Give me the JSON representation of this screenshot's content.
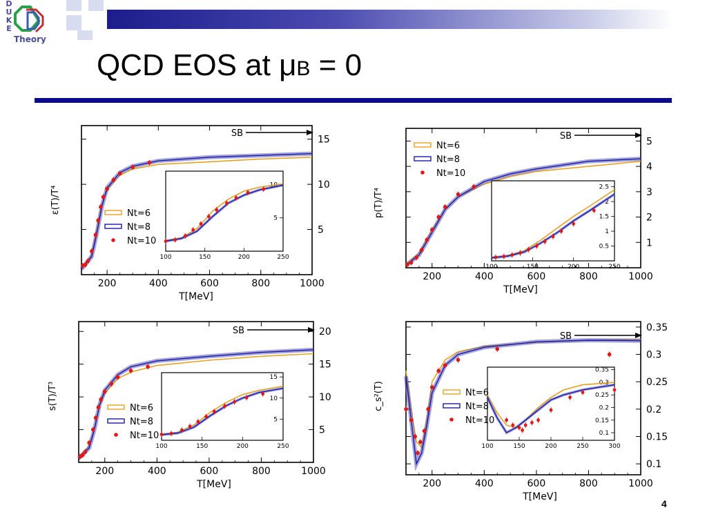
{
  "slide": {
    "title_main": "QCD EOS at μ",
    "title_sub": "B",
    "title_rest": " = 0",
    "page_number": "4",
    "logo_letters": [
      "D",
      "U",
      "K",
      "E"
    ],
    "logo_word": "Theory",
    "accent_color": "#0a0a8c"
  },
  "colors": {
    "nt6": "#e8a020",
    "nt8": "#1a1aa8",
    "nt10": "#e01818",
    "band": "#5a5ab8"
  },
  "chart_data": [
    {
      "type": "line",
      "ylabel": "ε(T)/T⁴",
      "xlabel": "T[MeV]",
      "sb_label": "SB",
      "xlim": [
        100,
        1000
      ],
      "ylim": [
        0,
        16.5
      ],
      "xticks": [
        "200",
        "400",
        "600",
        "800",
        "1000"
      ],
      "yticks": [
        "5",
        "10",
        "15"
      ],
      "series": [
        {
          "name": "Nt=6",
          "x": [
            100,
            140,
            160,
            180,
            200,
            250,
            300,
            400,
            600,
            800,
            1000
          ],
          "y": [
            0.8,
            2.2,
            5.0,
            7.8,
            9.4,
            11.0,
            11.7,
            12.2,
            12.5,
            12.8,
            13.0
          ]
        },
        {
          "name": "Nt=8",
          "x": [
            100,
            140,
            160,
            180,
            200,
            250,
            300,
            400,
            600,
            800,
            1000
          ],
          "y": [
            0.6,
            2.0,
            4.6,
            7.6,
            9.6,
            11.3,
            12.0,
            12.6,
            13.0,
            13.2,
            13.4
          ]
        },
        {
          "name": "Nt=10",
          "x": [
            105,
            115,
            125,
            140,
            155,
            165,
            175,
            185,
            200,
            225,
            250,
            300,
            365
          ],
          "y": [
            1.0,
            1.1,
            1.5,
            2.6,
            4.4,
            6.0,
            7.5,
            8.6,
            9.5,
            10.5,
            11.2,
            11.9,
            12.4
          ]
        }
      ],
      "inset": {
        "xlim": [
          100,
          250
        ],
        "ylim": [
          0,
          12
        ],
        "xticks": [
          "100",
          "150",
          "200",
          "250"
        ],
        "yticks": [
          "5",
          "10"
        ],
        "series": [
          {
            "name": "Nt=6",
            "x": [
              100,
              120,
              140,
              160,
              180,
              200,
              220,
              250
            ],
            "y": [
              1.6,
              2.0,
              3.4,
              6.0,
              7.8,
              9.0,
              9.6,
              10.1
            ]
          },
          {
            "name": "Nt=8",
            "x": [
              100,
              120,
              140,
              160,
              180,
              200,
              220,
              250
            ],
            "y": [
              1.5,
              1.9,
              3.0,
              5.2,
              7.2,
              8.4,
              9.2,
              9.9
            ]
          },
          {
            "name": "Nt=10",
            "x": [
              100,
              112,
              125,
              135,
              145,
              155,
              165,
              178,
              190,
              205,
              225
            ],
            "y": [
              1.5,
              1.7,
              2.3,
              3.2,
              4.1,
              5.2,
              6.2,
              7.2,
              8.0,
              8.8,
              9.3
            ]
          }
        ]
      }
    },
    {
      "type": "line",
      "ylabel": "p(T)/T⁴",
      "xlabel": "T[MeV]",
      "sb_label": "SB",
      "xlim": [
        100,
        1000
      ],
      "ylim": [
        0,
        5.5
      ],
      "xticks": [
        "200",
        "400",
        "600",
        "800",
        "1000"
      ],
      "yticks": [
        "1",
        "2",
        "3",
        "4",
        "5"
      ],
      "series": [
        {
          "name": "Nt=6",
          "x": [
            100,
            150,
            200,
            250,
            300,
            400,
            500,
            600,
            800,
            1000
          ],
          "y": [
            0.1,
            0.6,
            1.5,
            2.3,
            2.8,
            3.3,
            3.6,
            3.8,
            4.0,
            4.2
          ]
        },
        {
          "name": "Nt=8",
          "x": [
            100,
            150,
            200,
            250,
            300,
            400,
            500,
            600,
            800,
            1000
          ],
          "y": [
            0.1,
            0.5,
            1.4,
            2.3,
            2.8,
            3.4,
            3.7,
            3.9,
            4.2,
            4.3
          ]
        },
        {
          "name": "Nt=10",
          "x": [
            105,
            120,
            140,
            160,
            180,
            200,
            225,
            250,
            300,
            360
          ],
          "y": [
            0.12,
            0.2,
            0.4,
            0.7,
            1.1,
            1.5,
            2.0,
            2.4,
            2.9,
            3.2
          ]
        }
      ],
      "inset": {
        "xlim": [
          100,
          250
        ],
        "ylim": [
          0,
          2.7
        ],
        "xticks": [
          "100",
          "150",
          "200",
          "250"
        ],
        "yticks": [
          "0.5",
          "1",
          "1.5",
          "2",
          "2.5"
        ],
        "series": [
          {
            "name": "Nt=6",
            "x": [
              100,
              120,
              140,
              160,
              180,
              200,
              220,
              250
            ],
            "y": [
              0.12,
              0.18,
              0.35,
              0.7,
              1.1,
              1.5,
              1.85,
              2.4
            ]
          },
          {
            "name": "Nt=8",
            "x": [
              100,
              120,
              140,
              160,
              180,
              200,
              220,
              250
            ],
            "y": [
              0.1,
              0.16,
              0.3,
              0.6,
              0.95,
              1.35,
              1.7,
              2.25
            ]
          },
          {
            "name": "Nt=10",
            "x": [
              105,
              115,
              125,
              135,
              145,
              155,
              165,
              175,
              185,
              200,
              225
            ],
            "y": [
              0.12,
              0.15,
              0.2,
              0.27,
              0.38,
              0.5,
              0.65,
              0.82,
              1.0,
              1.25,
              1.7
            ]
          }
        ]
      }
    },
    {
      "type": "line",
      "ylabel": "s(T)/T³",
      "xlabel": "T[MeV]",
      "sb_label": "SB",
      "xlim": [
        100,
        1000
      ],
      "ylim": [
        0,
        21.5
      ],
      "xticks": [
        "200",
        "400",
        "600",
        "800",
        "1000"
      ],
      "yticks": [
        "5",
        "10",
        "15",
        "20"
      ],
      "series": [
        {
          "name": "Nt=6",
          "x": [
            100,
            140,
            160,
            180,
            200,
            250,
            300,
            400,
            600,
            800,
            1000
          ],
          "y": [
            0.8,
            2.5,
            5.2,
            8.6,
            10.5,
            12.8,
            13.8,
            14.8,
            15.6,
            16.2,
            16.6
          ]
        },
        {
          "name": "Nt=8",
          "x": [
            100,
            140,
            160,
            180,
            200,
            250,
            300,
            400,
            600,
            800,
            1000
          ],
          "y": [
            0.6,
            2.2,
            5.0,
            8.8,
            11.0,
            13.4,
            14.6,
            15.5,
            16.2,
            16.8,
            17.2
          ]
        },
        {
          "name": "Nt=10",
          "x": [
            105,
            115,
            125,
            140,
            155,
            165,
            175,
            185,
            200,
            225,
            250,
            300,
            365
          ],
          "y": [
            0.9,
            1.1,
            1.6,
            3.0,
            5.0,
            6.8,
            8.4,
            9.6,
            10.8,
            12.0,
            13.0,
            14.0,
            14.6
          ]
        }
      ],
      "inset": {
        "xlim": [
          100,
          250
        ],
        "ylim": [
          0,
          16
        ],
        "xticks": [
          "100",
          "150",
          "200",
          "250"
        ],
        "yticks": [
          "5",
          "10",
          "15"
        ],
        "series": [
          {
            "name": "Nt=6",
            "x": [
              100,
              120,
              140,
              160,
              180,
              200,
              220,
              250
            ],
            "y": [
              1.4,
              1.9,
              3.6,
              6.6,
              9.0,
              10.8,
              11.8,
              12.8
            ]
          },
          {
            "name": "Nt=8",
            "x": [
              100,
              120,
              140,
              160,
              180,
              200,
              220,
              250
            ],
            "y": [
              1.3,
              1.7,
              3.1,
              5.8,
              8.2,
              10.0,
              11.3,
              12.3
            ]
          },
          {
            "name": "Nt=10",
            "x": [
              100,
              112,
              125,
              135,
              145,
              155,
              165,
              178,
              190,
              205,
              225
            ],
            "y": [
              1.4,
              1.6,
              2.4,
              3.3,
              4.4,
              5.6,
              6.8,
              8.1,
              9.1,
              10.1,
              11.0
            ]
          }
        ]
      }
    },
    {
      "type": "line",
      "ylabel": "c_s²(T)",
      "xlabel": "T[MeV]",
      "sb_label": "SB",
      "xlim": [
        100,
        1000
      ],
      "ylim": [
        0.08,
        0.36
      ],
      "xticks": [
        "200",
        "400",
        "600",
        "800",
        "1000"
      ],
      "yticks": [
        "0.1",
        "0.15",
        "0.2",
        "0.25",
        "0.3",
        "0.35"
      ],
      "series": [
        {
          "name": "Nt=6",
          "x": [
            100,
            120,
            140,
            160,
            180,
            200,
            250,
            300,
            400,
            600,
            800,
            1000
          ],
          "y": [
            0.27,
            0.2,
            0.14,
            0.13,
            0.18,
            0.25,
            0.29,
            0.305,
            0.315,
            0.322,
            0.326,
            0.328
          ]
        },
        {
          "name": "Nt=8",
          "x": [
            100,
            120,
            140,
            160,
            180,
            200,
            250,
            300,
            400,
            600,
            800,
            1000
          ],
          "y": [
            0.26,
            0.18,
            0.1,
            0.12,
            0.17,
            0.23,
            0.28,
            0.3,
            0.313,
            0.323,
            0.326,
            0.325
          ]
        },
        {
          "name": "Nt=10",
          "x": [
            100,
            120,
            135,
            145,
            155,
            170,
            185,
            200,
            225,
            250,
            300,
            450,
            880
          ],
          "y": [
            0.2,
            0.18,
            0.15,
            0.12,
            0.14,
            0.16,
            0.2,
            0.24,
            0.27,
            0.28,
            0.29,
            0.31,
            0.3
          ]
        }
      ],
      "inset": {
        "xlim": [
          100,
          300
        ],
        "ylim": [
          0.07,
          0.36
        ],
        "xticks": [
          "100",
          "150",
          "200",
          "250",
          "300"
        ],
        "yticks": [
          "0.1",
          "0.15",
          "0.2",
          "0.25",
          "0.3",
          "0.35"
        ],
        "series": [
          {
            "name": "Nt=6",
            "x": [
              100,
              115,
              130,
              145,
              160,
              180,
              200,
              220,
              250,
              275,
              300
            ],
            "y": [
              0.25,
              0.18,
              0.13,
              0.12,
              0.15,
              0.2,
              0.24,
              0.27,
              0.29,
              0.295,
              0.3
            ]
          },
          {
            "name": "Nt=8",
            "x": [
              100,
              115,
              130,
              145,
              160,
              180,
              200,
              220,
              250,
              275,
              300
            ],
            "y": [
              0.24,
              0.16,
              0.1,
              0.12,
              0.15,
              0.19,
              0.23,
              0.25,
              0.27,
              0.28,
              0.29
            ]
          },
          {
            "name": "Nt=10",
            "x": [
              130,
              140,
              150,
              155,
              160,
              170,
              180,
              200,
              230,
              250,
              300
            ],
            "y": [
              0.15,
              0.13,
              0.12,
              0.11,
              0.13,
              0.14,
              0.15,
              0.19,
              0.24,
              0.26,
              0.27
            ]
          }
        ]
      }
    }
  ]
}
